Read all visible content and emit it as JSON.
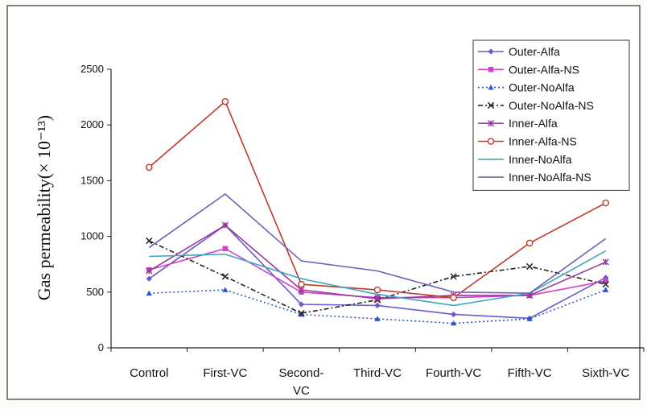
{
  "chart_data": {
    "type": "line",
    "ylabel": "Gas permeability(× 10⁻¹³)",
    "xlabel": "",
    "ylim": [
      0,
      2500
    ],
    "yticks": [
      0,
      500,
      1000,
      1500,
      2000,
      2500
    ],
    "categories": [
      "Control",
      "First-VC",
      "Second-VC",
      "Third-VC",
      "Fourth-VC",
      "Fifth-VC",
      "Sixth-VC"
    ],
    "legend_position": "top-right",
    "grid": false,
    "series": [
      {
        "name": "Outer-Alfa",
        "values": [
          620,
          1100,
          390,
          380,
          300,
          265,
          630
        ],
        "color": "#6a5acd",
        "dash": "",
        "marker": "diamond"
      },
      {
        "name": "Outer-Alfa-NS",
        "values": [
          700,
          890,
          500,
          450,
          450,
          470,
          600
        ],
        "color": "#cc44cc",
        "dash": "",
        "marker": "square"
      },
      {
        "name": "Outer-NoAlfa",
        "values": [
          490,
          520,
          300,
          260,
          220,
          260,
          520
        ],
        "color": "#2f55c8",
        "dash": "2,3",
        "marker": "triangle"
      },
      {
        "name": "Outer-NoAlfa-NS",
        "values": [
          960,
          640,
          310,
          430,
          640,
          730,
          570
        ],
        "color": "#222222",
        "dash": "6,3,2,3",
        "marker": "x"
      },
      {
        "name": "Inner-Alfa",
        "values": [
          690,
          1100,
          520,
          440,
          470,
          470,
          770
        ],
        "color": "#9a3a9a",
        "dash": "",
        "marker": "star"
      },
      {
        "name": "Inner-Alfa-NS",
        "values": [
          1620,
          2210,
          570,
          520,
          450,
          940,
          1300
        ],
        "color": "#c0392b",
        "dash": "",
        "marker": "circle"
      },
      {
        "name": "Inner-NoAlfa",
        "values": [
          820,
          840,
          620,
          480,
          380,
          490,
          870
        ],
        "color": "#3aa8c0",
        "dash": "",
        "marker": "none"
      },
      {
        "name": "Inner-NoAlfa-NS",
        "values": [
          900,
          1380,
          780,
          690,
          500,
          490,
          980
        ],
        "color": "#7060b8",
        "dash": "",
        "marker": "none"
      }
    ]
  }
}
